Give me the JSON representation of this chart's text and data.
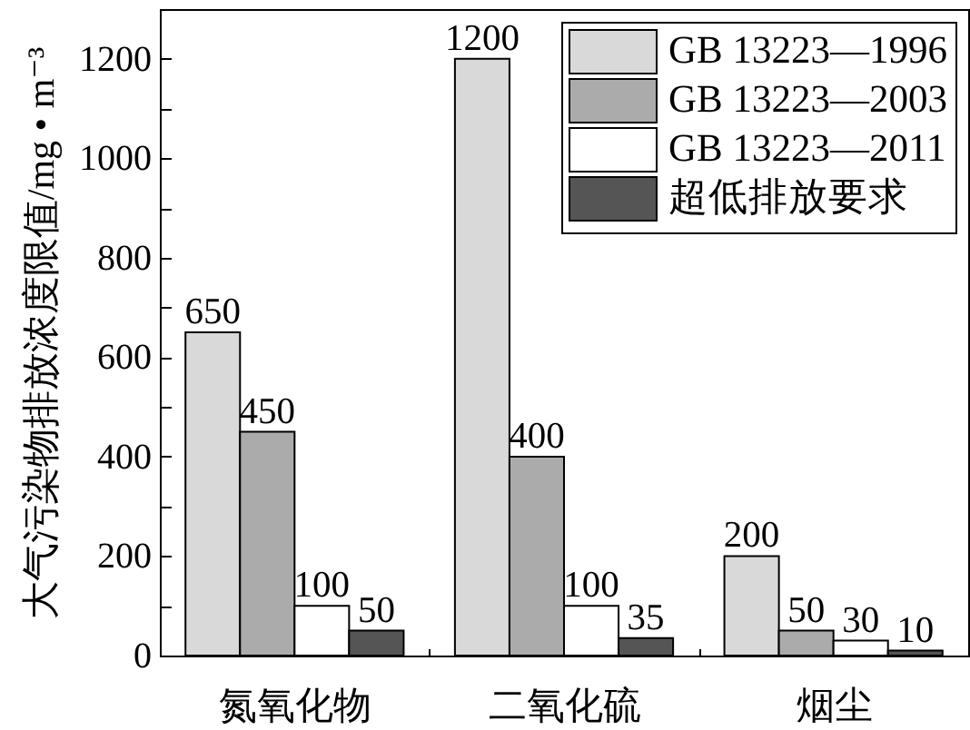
{
  "chart_data": {
    "type": "bar",
    "ylabel": "大气污染物排放浓度限值/mg • m⁻³",
    "categories": [
      "氮氧化物",
      "二氧化硫",
      "烟尘"
    ],
    "series": [
      {
        "name": "GB 13223—1996",
        "color": "#d9d9d9",
        "values": [
          650,
          1200,
          200
        ]
      },
      {
        "name": "GB 13223—2003",
        "color": "#ababab",
        "values": [
          450,
          400,
          50
        ]
      },
      {
        "name": "GB 13223—2011",
        "color": "#ffffff",
        "values": [
          100,
          100,
          30
        ]
      },
      {
        "name": "超低排放要求",
        "color": "#555555",
        "values": [
          50,
          35,
          10
        ]
      }
    ],
    "ylim": [
      0,
      1300
    ],
    "yticks": [
      0,
      {
        "value": 100,
        "label": null
      },
      200,
      {
        "value": 300,
        "label": null
      },
      400,
      {
        "value": 500,
        "label": null
      },
      600,
      {
        "value": 700,
        "label": null
      },
      800,
      {
        "value": 900,
        "label": null
      },
      1000,
      {
        "value": 1100,
        "label": null
      },
      1200
    ],
    "data_labels": true,
    "legend": "top right"
  }
}
